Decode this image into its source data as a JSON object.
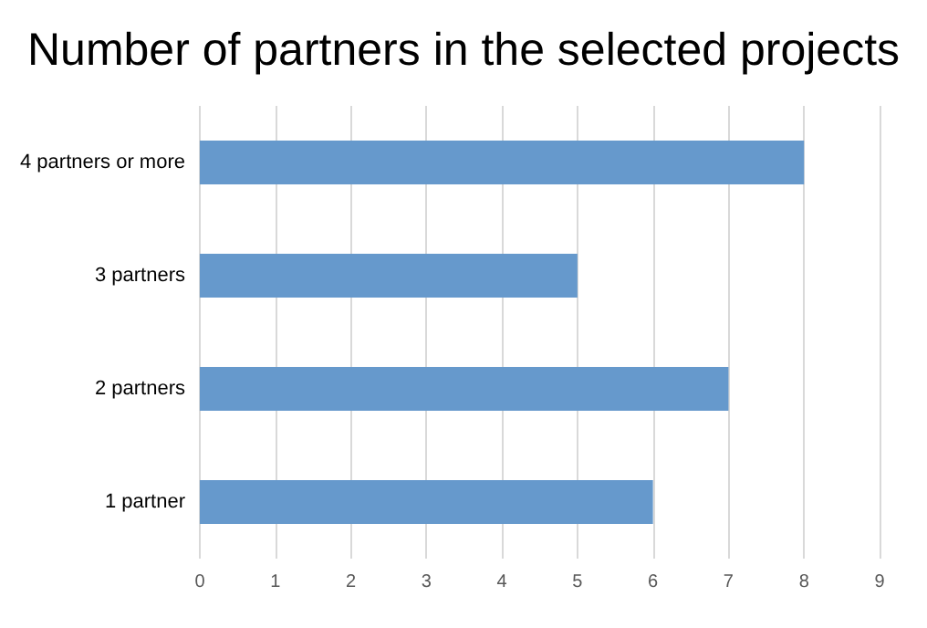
{
  "chart_data": {
    "type": "bar",
    "orientation": "horizontal",
    "title": "Number of partners in the selected projects",
    "categories": [
      "4 partners or more",
      "3 partners",
      "2 partners",
      "1 partner"
    ],
    "values": [
      8,
      5,
      7,
      6
    ],
    "color": "#6699cc",
    "xlim": [
      0,
      9
    ],
    "xticks": [
      0,
      1,
      2,
      3,
      4,
      5,
      6,
      7,
      8,
      9
    ],
    "grid": "x"
  }
}
